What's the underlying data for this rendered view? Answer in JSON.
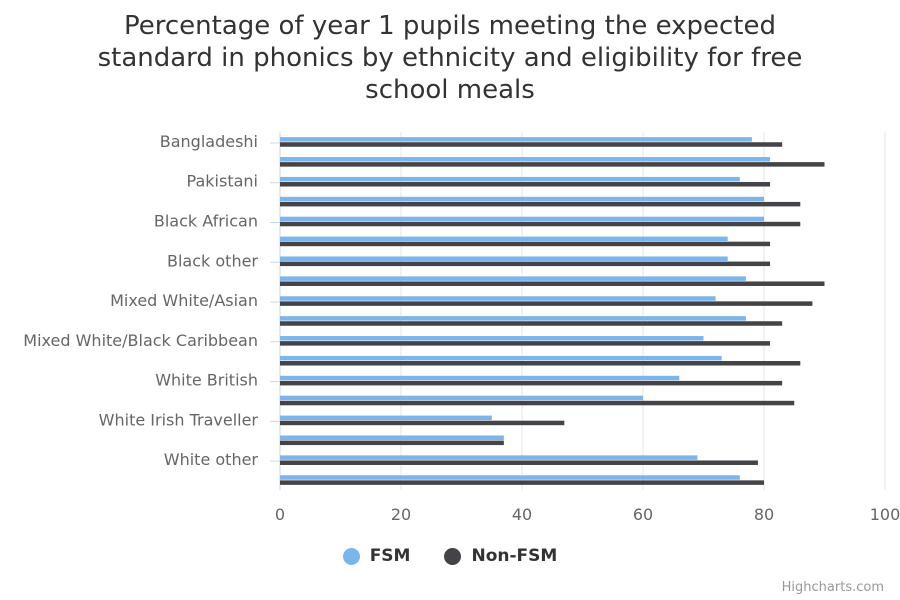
{
  "chart_data": {
    "type": "bar",
    "orientation": "horizontal",
    "title_lines": [
      "Percentage of year 1 pupils meeting the expected",
      "standard in phonics by ethnicity and eligibility for free",
      "school meals"
    ],
    "category_labels": [
      "Bangladeshi",
      "",
      "Pakistani",
      "",
      "Black African",
      "",
      "Black other",
      "",
      "Mixed White/Asian",
      "",
      "Mixed White/Black Caribbean",
      "",
      "White British",
      "",
      "White Irish Traveller",
      "",
      "White other",
      ""
    ],
    "series": [
      {
        "name": "FSM",
        "color": "#7cb5ec",
        "values": [
          78,
          81,
          76,
          80,
          80,
          74,
          74,
          77,
          72,
          77,
          70,
          73,
          66,
          60,
          35,
          37,
          69,
          76
        ]
      },
      {
        "name": "Non-FSM",
        "color": "#434348",
        "values": [
          83,
          90,
          81,
          86,
          86,
          81,
          81,
          90,
          88,
          83,
          81,
          86,
          83,
          85,
          47,
          37,
          79,
          80
        ]
      }
    ],
    "xlim": [
      0,
      100
    ],
    "x_ticks": [
      "0",
      "20",
      "40",
      "60",
      "80",
      "100"
    ],
    "grid": true,
    "legend_position": "bottom-center"
  },
  "credits": "Highcharts.com"
}
